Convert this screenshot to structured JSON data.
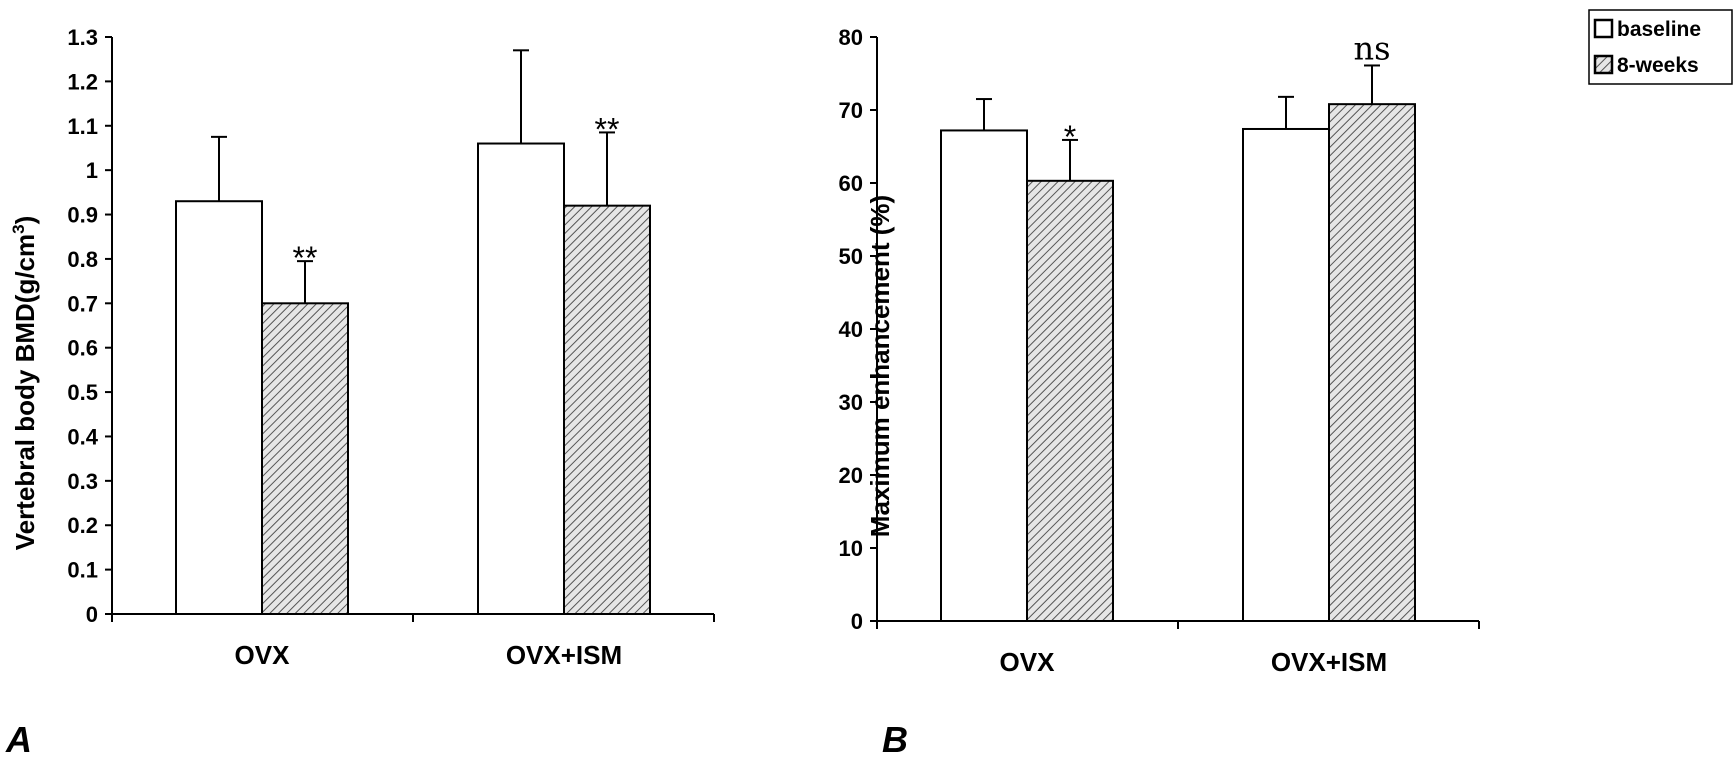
{
  "colors": {
    "baseline": "#ffffff",
    "hatch": "#555555",
    "axis": "#000000"
  },
  "legend": {
    "items": [
      {
        "label": "baseline",
        "pattern": "solid"
      },
      {
        "label": "8-weeks",
        "pattern": "hatch"
      }
    ]
  },
  "chart_data": [
    {
      "type": "bar",
      "panel_label": "A",
      "categories": [
        "OVX",
        "OVX+ISM"
      ],
      "series": [
        {
          "name": "baseline",
          "values": [
            0.93,
            1.06
          ],
          "errors": [
            0.145,
            0.21
          ]
        },
        {
          "name": "8-weeks",
          "values": [
            0.7,
            0.92
          ],
          "errors": [
            0.095,
            0.165
          ]
        }
      ],
      "significance": [
        [
          "",
          "**"
        ],
        [
          "",
          "**"
        ]
      ],
      "ylabel": "Vertebral body BMD(g/cm",
      "ylabel_sup": "3",
      "ylabel_close": ")",
      "ylim": [
        0,
        1.3
      ],
      "yticks": [
        "0",
        "0.1",
        "0.2",
        "0.3",
        "0.4",
        "0.5",
        "0.6",
        "0.7",
        "0.8",
        "0.9",
        "1",
        "1.1",
        "1.2",
        "1.3"
      ],
      "grid": false
    },
    {
      "type": "bar",
      "panel_label": "B",
      "categories": [
        "OVX",
        "OVX+ISM"
      ],
      "series": [
        {
          "name": "baseline",
          "values": [
            67.2,
            67.4
          ],
          "errors": [
            4.3,
            4.4
          ]
        },
        {
          "name": "8-weeks",
          "values": [
            60.3,
            70.8
          ],
          "errors": [
            5.6,
            5.3
          ]
        }
      ],
      "significance": [
        [
          "",
          "*"
        ],
        [
          "",
          "ns"
        ]
      ],
      "ylabel": "Maximum enhancement (%)",
      "ylim": [
        0,
        80
      ],
      "yticks": [
        "0",
        "10",
        "20",
        "30",
        "40",
        "50",
        "60",
        "70",
        "80"
      ],
      "legend_position": "top-right",
      "grid": false
    }
  ]
}
